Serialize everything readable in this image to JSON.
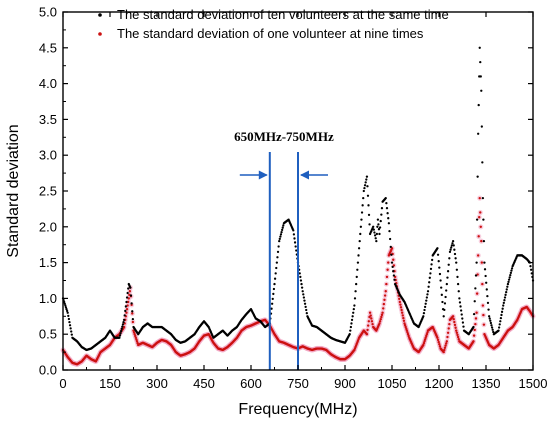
{
  "chart_data": {
    "type": "scatter",
    "title": "",
    "xlabel": "Frequency(MHz)",
    "ylabel": "Standard deviation",
    "xlim": [
      0,
      1500
    ],
    "ylim": [
      0,
      5.0
    ],
    "xticks": [
      "0",
      "150",
      "300",
      "450",
      "600",
      "750",
      "900",
      "1050",
      "1200",
      "1350",
      "1500"
    ],
    "yticks": [
      "0.0",
      "0.5",
      "1.0",
      "1.5",
      "2.0",
      "2.5",
      "3.0",
      "3.5",
      "4.0",
      "4.5",
      "5.0"
    ],
    "grid": false,
    "legend_position": "top",
    "annotation": {
      "label": "650MHz-750MHz",
      "x_start": 660,
      "x_end": 750,
      "color": "#1f5fbf"
    },
    "series": [
      {
        "name": "The standard deviation of ten volunteers at the same time",
        "color": "#000000",
        "x": [
          0,
          15,
          30,
          45,
          60,
          75,
          90,
          105,
          120,
          135,
          150,
          165,
          180,
          195,
          210,
          215,
          225,
          240,
          255,
          270,
          285,
          300,
          315,
          330,
          345,
          360,
          375,
          390,
          405,
          420,
          435,
          450,
          465,
          480,
          495,
          510,
          525,
          540,
          555,
          570,
          585,
          600,
          615,
          630,
          645,
          660,
          675,
          690,
          705,
          720,
          735,
          750,
          765,
          780,
          795,
          810,
          825,
          840,
          855,
          870,
          885,
          900,
          915,
          930,
          945,
          960,
          970,
          975,
          980,
          990,
          1000,
          1005,
          1010,
          1020,
          1030,
          1040,
          1050,
          1060,
          1075,
          1090,
          1105,
          1120,
          1135,
          1150,
          1165,
          1180,
          1195,
          1205,
          1215,
          1225,
          1235,
          1245,
          1255,
          1265,
          1280,
          1295,
          1310,
          1320,
          1325,
          1330,
          1335,
          1340,
          1345,
          1360,
          1375,
          1390,
          1405,
          1420,
          1435,
          1450,
          1465,
          1480,
          1490,
          1500
        ],
        "y": [
          1.0,
          0.8,
          0.45,
          0.4,
          0.32,
          0.28,
          0.3,
          0.35,
          0.4,
          0.45,
          0.55,
          0.45,
          0.45,
          0.7,
          1.2,
          1.15,
          0.6,
          0.5,
          0.6,
          0.65,
          0.6,
          0.6,
          0.6,
          0.55,
          0.5,
          0.42,
          0.38,
          0.4,
          0.45,
          0.5,
          0.6,
          0.68,
          0.6,
          0.45,
          0.5,
          0.55,
          0.48,
          0.55,
          0.6,
          0.7,
          0.78,
          0.85,
          0.72,
          0.68,
          0.6,
          0.65,
          1.2,
          1.8,
          2.05,
          2.1,
          1.95,
          1.5,
          1.1,
          0.75,
          0.62,
          0.6,
          0.55,
          0.5,
          0.45,
          0.42,
          0.4,
          0.38,
          0.5,
          0.9,
          1.7,
          2.5,
          2.7,
          2.3,
          1.9,
          2.0,
          1.8,
          2.1,
          1.9,
          2.35,
          2.4,
          2.05,
          1.5,
          1.2,
          1.05,
          0.95,
          0.8,
          0.65,
          0.6,
          0.75,
          1.1,
          1.6,
          1.7,
          1.25,
          0.75,
          1.2,
          1.65,
          1.8,
          1.5,
          1.0,
          0.55,
          0.5,
          0.6,
          1.5,
          3.3,
          4.5,
          3.9,
          2.4,
          1.5,
          0.75,
          0.5,
          0.55,
          0.9,
          1.2,
          1.45,
          1.6,
          1.6,
          1.55,
          1.5,
          1.25
        ]
      },
      {
        "name": "The standard deviation of one volunteer  at nine times",
        "color": "#cc1111",
        "x": [
          0,
          15,
          30,
          45,
          60,
          75,
          90,
          105,
          120,
          135,
          150,
          165,
          180,
          195,
          210,
          215,
          225,
          240,
          255,
          270,
          285,
          300,
          315,
          330,
          345,
          360,
          375,
          390,
          405,
          420,
          435,
          450,
          465,
          480,
          495,
          510,
          525,
          540,
          555,
          570,
          585,
          600,
          615,
          630,
          645,
          660,
          675,
          690,
          705,
          720,
          735,
          750,
          765,
          780,
          795,
          810,
          825,
          840,
          855,
          870,
          885,
          900,
          915,
          930,
          945,
          960,
          970,
          980,
          990,
          1000,
          1010,
          1020,
          1030,
          1040,
          1050,
          1060,
          1075,
          1090,
          1105,
          1120,
          1135,
          1150,
          1165,
          1180,
          1195,
          1205,
          1215,
          1225,
          1235,
          1245,
          1255,
          1265,
          1280,
          1295,
          1310,
          1320,
          1325,
          1330,
          1335,
          1340,
          1345,
          1360,
          1375,
          1390,
          1405,
          1420,
          1435,
          1450,
          1465,
          1480,
          1490,
          1500
        ],
        "y": [
          0.28,
          0.18,
          0.1,
          0.08,
          0.12,
          0.2,
          0.15,
          0.12,
          0.25,
          0.3,
          0.35,
          0.45,
          0.5,
          0.6,
          1.0,
          1.15,
          0.55,
          0.35,
          0.38,
          0.35,
          0.32,
          0.38,
          0.42,
          0.4,
          0.35,
          0.25,
          0.2,
          0.22,
          0.25,
          0.3,
          0.4,
          0.48,
          0.5,
          0.38,
          0.3,
          0.28,
          0.32,
          0.38,
          0.45,
          0.55,
          0.6,
          0.62,
          0.65,
          0.68,
          0.7,
          0.62,
          0.5,
          0.4,
          0.38,
          0.35,
          0.32,
          0.3,
          0.33,
          0.3,
          0.28,
          0.3,
          0.3,
          0.28,
          0.22,
          0.18,
          0.15,
          0.15,
          0.2,
          0.28,
          0.45,
          0.55,
          0.5,
          0.8,
          0.6,
          0.55,
          0.65,
          0.8,
          1.1,
          1.6,
          1.7,
          1.3,
          0.95,
          0.65,
          0.45,
          0.3,
          0.25,
          0.35,
          0.55,
          0.6,
          0.45,
          0.3,
          0.25,
          0.4,
          0.7,
          0.75,
          0.55,
          0.4,
          0.35,
          0.3,
          0.4,
          0.8,
          1.6,
          2.4,
          1.8,
          0.9,
          0.5,
          0.35,
          0.3,
          0.35,
          0.45,
          0.55,
          0.6,
          0.7,
          0.85,
          0.88,
          0.82,
          0.75
        ]
      }
    ]
  }
}
